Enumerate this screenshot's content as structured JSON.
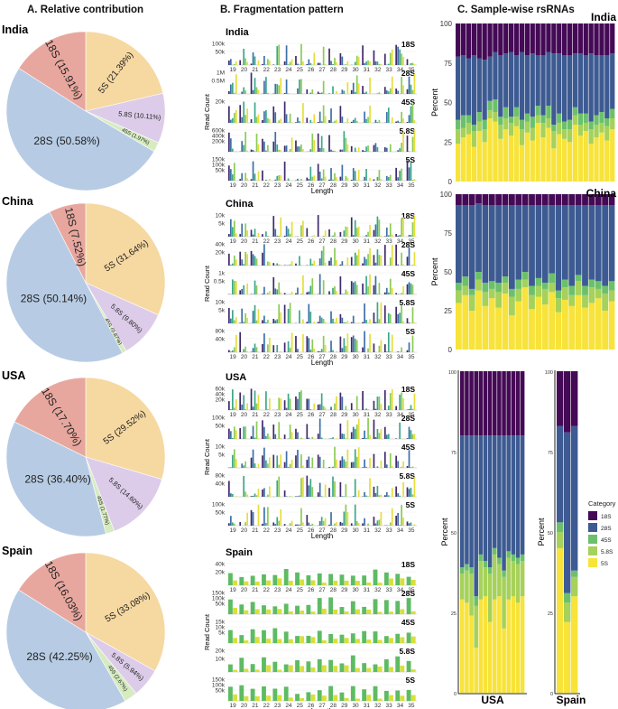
{
  "section_titles": {
    "a": "A. Relative contribution",
    "b": "B. Fragmentation pattern",
    "c": "C. Sample-wise rsRNAs"
  },
  "colors": {
    "pie": {
      "18S": "#E8A79E",
      "28S": "#B7CCE4",
      "5S": "#F6D8A1",
      "5.8S": "#DCCCE9",
      "45S": "#D6ECC0"
    },
    "stack": {
      "18S": "#450A56",
      "28S": "#3D5B92",
      "45S": "#6CC06B",
      "5.8S": "#A6D15A",
      "5S": "#F7E33A"
    },
    "frag": [
      "#3F2A6B",
      "#3D6FA6",
      "#3BA889",
      "#8CCB55",
      "#E6DE3A"
    ]
  },
  "chart_data": [
    {
      "type": "pie",
      "panel": "A",
      "countries": [
        {
          "name": "India",
          "slices": [
            {
              "cat": "5S",
              "value": 21.39,
              "label": "5S (21.39%)"
            },
            {
              "cat": "5.8S",
              "value": 10.11,
              "label": "5.8S (10.11%)"
            },
            {
              "cat": "45S",
              "value": 1.97,
              "label": "45S (1.97%)"
            },
            {
              "cat": "28S",
              "value": 50.58,
              "label": "28S (50.58%)"
            },
            {
              "cat": "18S",
              "value": 15.91,
              "label": "18S (15.91%)"
            }
          ]
        },
        {
          "name": "China",
          "slices": [
            {
              "cat": "5S",
              "value": 31.64,
              "label": "5S (31.64%)"
            },
            {
              "cat": "5.8S",
              "value": 9.8,
              "label": "5.8S (9.80%)"
            },
            {
              "cat": "45S",
              "value": 0.87,
              "label": "45S (0.87%)"
            },
            {
              "cat": "28S",
              "value": 50.14,
              "label": "28S (50.14%)"
            },
            {
              "cat": "18S",
              "value": 7.52,
              "label": "18S (7.52%)"
            }
          ]
        },
        {
          "name": "USA",
          "slices": [
            {
              "cat": "5S",
              "value": 29.52,
              "label": "5S (29.52%)"
            },
            {
              "cat": "5.8S",
              "value": 14.6,
              "label": "5.8S (14.60%)"
            },
            {
              "cat": "45S",
              "value": 1.77,
              "label": "45S (1.77%)"
            },
            {
              "cat": "28S",
              "value": 36.4,
              "label": "28S (36.40%)"
            },
            {
              "cat": "18S",
              "value": 17.7,
              "label": "18S (17.70%)"
            }
          ]
        },
        {
          "name": "Spain",
          "slices": [
            {
              "cat": "5S",
              "value": 33.08,
              "label": "5S (33.08%)"
            },
            {
              "cat": "5.8S",
              "value": 5.94,
              "label": "5.8S (5.94%)"
            },
            {
              "cat": "45S",
              "value": 2.67,
              "label": "45S (2.67%)"
            },
            {
              "cat": "28S",
              "value": 42.25,
              "label": "28S (42.25%)"
            },
            {
              "cat": "18S",
              "value": 16.03,
              "label": "18S (16.03%)"
            }
          ]
        }
      ]
    },
    {
      "type": "bar",
      "panel": "B",
      "xlabel": "Length",
      "ylabel": "Read Count",
      "x_ticks": [
        "19",
        "20",
        "21",
        "22",
        "23",
        "24",
        "25",
        "26",
        "27",
        "28",
        "29",
        "30",
        "31",
        "32",
        "33",
        "34",
        "35"
      ],
      "countries": [
        {
          "name": "India",
          "facets": [
            {
              "label": "18S",
              "ticks": [
                "100k",
                "50k"
              ]
            },
            {
              "label": "28S",
              "ticks": [
                "1M",
                "0.5M"
              ]
            },
            {
              "label": "45S",
              "ticks": [
                "20k"
              ]
            },
            {
              "label": "5.8S",
              "ticks": [
                "600k",
                "400k",
                "200k"
              ]
            },
            {
              "label": "5S",
              "ticks": [
                "150k",
                "100k",
                "50k"
              ]
            }
          ]
        },
        {
          "name": "China",
          "facets": [
            {
              "label": "18S",
              "ticks": [
                "10k",
                "5k"
              ]
            },
            {
              "label": "28S",
              "ticks": [
                "40k",
                "20k"
              ]
            },
            {
              "label": "45S",
              "ticks": [
                "1k",
                "0.5k"
              ]
            },
            {
              "label": "5.8S",
              "ticks": [
                "10k",
                "5k"
              ]
            },
            {
              "label": "5S",
              "ticks": [
                "80k",
                "40k"
              ]
            }
          ]
        },
        {
          "name": "USA",
          "facets": [
            {
              "label": "18S",
              "ticks": [
                "60k",
                "40k",
                "20k"
              ]
            },
            {
              "label": "28S",
              "ticks": [
                "100k",
                "50k"
              ]
            },
            {
              "label": "45S",
              "ticks": [
                "10k",
                "5k"
              ]
            },
            {
              "label": "5.8S",
              "ticks": [
                "80k",
                "40k"
              ]
            },
            {
              "label": "5S",
              "ticks": [
                "100k",
                "50k"
              ]
            }
          ]
        },
        {
          "name": "Spain",
          "facets": [
            {
              "label": "18S",
              "ticks": [
                "40k",
                "20k"
              ]
            },
            {
              "label": "28S",
              "ticks": [
                "150k",
                "100k",
                "50k"
              ]
            },
            {
              "label": "45S",
              "ticks": [
                "15k",
                "10k",
                "5k"
              ]
            },
            {
              "label": "5.8S",
              "ticks": [
                "20k",
                "10k"
              ]
            },
            {
              "label": "5S",
              "ticks": [
                "150k",
                "100k",
                "50k"
              ]
            }
          ]
        }
      ]
    },
    {
      "type": "bar",
      "stacked": true,
      "panel": "C",
      "ylabel": "Percent",
      "y_ticks": [
        "0",
        "25",
        "50",
        "75",
        "100"
      ],
      "legend_title": "Category",
      "legend": [
        "18S",
        "28S",
        "45S",
        "5.8S",
        "5S"
      ],
      "stack_order": [
        "5S",
        "5.8S",
        "45S",
        "28S",
        "18S"
      ],
      "countries": [
        {
          "name": "India",
          "samples": [
            [
              24,
              9,
              6,
              40,
              21
            ],
            [
              28,
              6,
              8,
              38,
              20
            ],
            [
              30,
              7,
              5,
              36,
              22
            ],
            [
              22,
              10,
              4,
              44,
              20
            ],
            [
              32,
              6,
              6,
              34,
              22
            ],
            [
              25,
              8,
              6,
              38,
              23
            ],
            [
              40,
              5,
              6,
              28,
              21
            ],
            [
              38,
              6,
              8,
              30,
              18
            ],
            [
              27,
              9,
              5,
              39,
              20
            ],
            [
              33,
              7,
              7,
              34,
              19
            ],
            [
              29,
              8,
              4,
              41,
              18
            ],
            [
              35,
              6,
              6,
              33,
              20
            ],
            [
              23,
              10,
              6,
              43,
              18
            ],
            [
              31,
              7,
              5,
              37,
              20
            ],
            [
              26,
              8,
              7,
              40,
              19
            ],
            [
              37,
              5,
              6,
              32,
              20
            ],
            [
              28,
              9,
              5,
              38,
              20
            ],
            [
              34,
              6,
              8,
              34,
              18
            ],
            [
              21,
              11,
              4,
              45,
              19
            ],
            [
              30,
              7,
              6,
              38,
              19
            ],
            [
              27,
              6,
              5,
              42,
              20
            ],
            [
              25,
              8,
              6,
              41,
              20
            ],
            [
              36,
              6,
              5,
              34,
              19
            ],
            [
              29,
              7,
              7,
              38,
              19
            ],
            [
              32,
              5,
              6,
              37,
              20
            ],
            [
              24,
              9,
              5,
              43,
              19
            ],
            [
              28,
              8,
              6,
              38,
              20
            ],
            [
              31,
              6,
              7,
              36,
              20
            ],
            [
              26,
              9,
              5,
              40,
              20
            ],
            [
              33,
              7,
              6,
              35,
              19
            ]
          ]
        },
        {
          "name": "China",
          "samples": [
            [
              30,
              8,
              5,
              50,
              7
            ],
            [
              35,
              6,
              6,
              46,
              7
            ],
            [
              25,
              10,
              4,
              54,
              7
            ],
            [
              38,
              7,
              5,
              44,
              6
            ],
            [
              28,
              9,
              6,
              50,
              7
            ],
            [
              33,
              6,
              5,
              49,
              7
            ],
            [
              27,
              10,
              6,
              50,
              7
            ],
            [
              36,
              7,
              4,
              46,
              7
            ],
            [
              22,
              12,
              5,
              54,
              7
            ],
            [
              31,
              8,
              6,
              48,
              7
            ],
            [
              40,
              5,
              5,
              43,
              7
            ],
            [
              26,
              9,
              6,
              52,
              7
            ],
            [
              34,
              7,
              5,
              47,
              7
            ],
            [
              29,
              10,
              4,
              50,
              7
            ],
            [
              37,
              6,
              6,
              44,
              7
            ],
            [
              24,
              9,
              5,
              55,
              7
            ],
            [
              32,
              8,
              5,
              48,
              7
            ],
            [
              28,
              7,
              6,
              52,
              7
            ],
            [
              35,
              9,
              4,
              45,
              7
            ],
            [
              27,
              8,
              6,
              52,
              7
            ],
            [
              30,
              10,
              5,
              48,
              7
            ],
            [
              33,
              6,
              5,
              49,
              7
            ],
            [
              25,
              11,
              5,
              52,
              7
            ],
            [
              31,
              7,
              6,
              49,
              7
            ]
          ]
        },
        {
          "name": "USA",
          "samples": [
            [
              29,
              8,
              2,
              41,
              20
            ],
            [
              28,
              10,
              2,
              40,
              20
            ],
            [
              24,
              13,
              2,
              41,
              20
            ],
            [
              14,
              13,
              3,
              50,
              20
            ],
            [
              29,
              12,
              2,
              37,
              20
            ],
            [
              30,
              9,
              2,
              39,
              20
            ],
            [
              22,
              15,
              2,
              41,
              20
            ],
            [
              29,
              14,
              2,
              35,
              20
            ],
            [
              30,
              10,
              2,
              38,
              20
            ],
            [
              20,
              16,
              2,
              42,
              20
            ],
            [
              29,
              13,
              2,
              36,
              20
            ],
            [
              30,
              11,
              2,
              37,
              20
            ],
            [
              28,
              12,
              2,
              38,
              20
            ],
            [
              30,
              11,
              2,
              37,
              20
            ]
          ]
        },
        {
          "name": "Spain",
          "samples": [
            [
              45,
              5,
              3,
              30,
              17
            ],
            [
              22,
              6,
              3,
              50,
              19
            ],
            [
              30,
              6,
              2,
              45,
              17
            ]
          ]
        }
      ]
    }
  ]
}
